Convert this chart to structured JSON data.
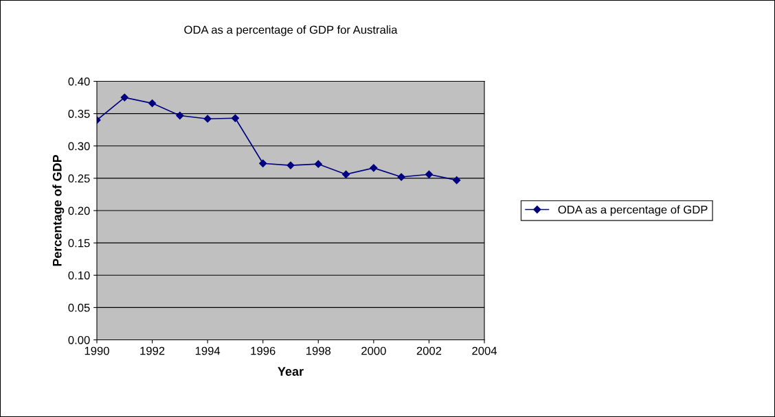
{
  "chart_data": {
    "type": "line",
    "title": "ODA as a percentage of GDP for Australia",
    "xlabel": "Year",
    "ylabel": "Percentage of GDP",
    "x": [
      1990,
      1991,
      1992,
      1993,
      1994,
      1995,
      1996,
      1997,
      1998,
      1999,
      2000,
      2001,
      2002,
      2003
    ],
    "series": [
      {
        "name": "ODA as a percentage of GDP",
        "color": "#000080",
        "values": [
          0.34,
          0.375,
          0.366,
          0.347,
          0.342,
          0.343,
          0.273,
          0.27,
          0.272,
          0.256,
          0.266,
          0.252,
          0.256,
          0.247
        ]
      }
    ],
    "xlim": [
      1990,
      2004
    ],
    "xticks": [
      1990,
      1992,
      1994,
      1996,
      1998,
      2000,
      2002,
      2004
    ],
    "ylim": [
      0,
      0.4
    ],
    "yticks": [
      {
        "value": 0,
        "label": "0.00"
      },
      {
        "value": 0.05,
        "label": "0.05"
      },
      {
        "value": 0.1,
        "label": "0.10"
      },
      {
        "value": 0.15,
        "label": "0.15"
      },
      {
        "value": 0.2,
        "label": "0.20"
      },
      {
        "value": 0.25,
        "label": "0.25"
      },
      {
        "value": 0.3,
        "label": "0.30"
      },
      {
        "value": 0.35,
        "label": "0.35"
      },
      {
        "value": 0.4,
        "label": "0.40"
      }
    ],
    "grid": "y",
    "legend": "right",
    "marker": "diamond",
    "line_style": "solid"
  }
}
